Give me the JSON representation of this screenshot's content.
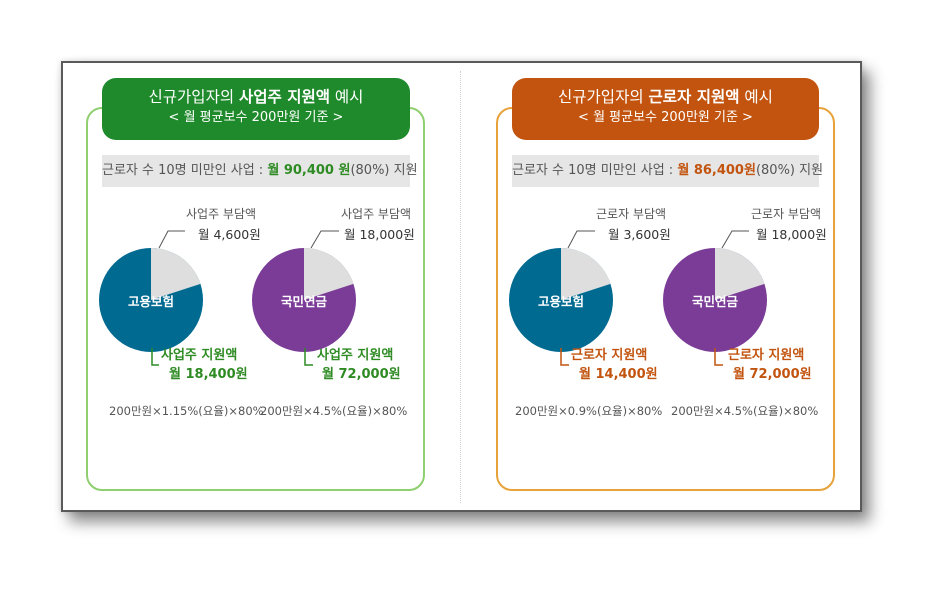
{
  "left": {
    "title_prefix": "신규가입자의 ",
    "title_bold": "사업주 지원액",
    "title_suffix": " 예시",
    "subtitle": "< 월 평균보수 200만원 기준 >",
    "banner_prefix": "근로자 수 10명 미만인 사업 : ",
    "banner_amount": "월 90,400 원",
    "banner_suffix": "(80%) 지원",
    "pie1": {
      "center_label": "고용보험",
      "share_label": "사업주 부담액",
      "share_amount": "월 4,600원",
      "support_label": "사업주 지원액",
      "support_amount": "월 18,400원",
      "formula": "200만원×1.15%(요율)×80%",
      "share_fraction": 0.2
    },
    "pie2": {
      "center_label": "국민연금",
      "share_label": "사업주 부담액",
      "share_amount": "월 18,000원",
      "support_label": "사업주 지원액",
      "support_amount": "월 72,000원",
      "formula": "200만원×4.5%(요율)×80%",
      "share_fraction": 0.2
    }
  },
  "right": {
    "title_prefix": "신규가입자의 ",
    "title_bold": "근로자 지원액",
    "title_suffix": " 예시",
    "subtitle": "< 월 평균보수 200만원 기준 >",
    "banner_prefix": "근로자 수 10명 미만인 사업 : ",
    "banner_amount": "월 86,400원",
    "banner_suffix": "(80%) 지원",
    "pie1": {
      "center_label": "고용보험",
      "share_label": "근로자 부담액",
      "share_amount": "월 3,600원",
      "support_label": "근로자 지원액",
      "support_amount": "월 14,400원",
      "formula": "200만원×0.9%(요율)×80%",
      "share_fraction": 0.2
    },
    "pie2": {
      "center_label": "국민연금",
      "share_label": "근로자 부담액",
      "share_amount": "월 18,000원",
      "support_label": "근로자 지원액",
      "support_amount": "월 72,000원",
      "formula": "200만원×4.5%(요율)×80%",
      "share_fraction": 0.2
    }
  },
  "colors": {
    "employment_insurance": "#006a91",
    "national_pension": "#7b3c98",
    "share_slice": "#dedede",
    "left_accent": "#1f8a2b",
    "right_accent": "#c2540f"
  }
}
